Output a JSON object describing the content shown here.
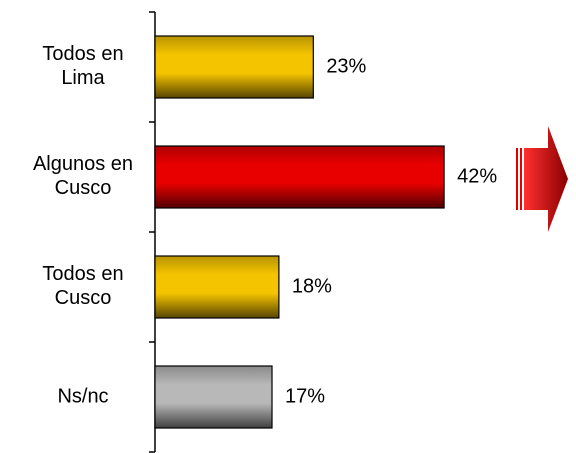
{
  "chart_data": {
    "type": "bar",
    "orientation": "horizontal",
    "categories": [
      "Todos en\nLima",
      "Algunos en\nCusco",
      "Todos en\nCusco",
      "Ns/nc"
    ],
    "values": [
      23,
      42,
      18,
      17
    ],
    "value_labels": [
      "23%",
      "42%",
      "18%",
      "17%"
    ],
    "colors": [
      "#f5c400",
      "#e80000",
      "#f5c400",
      "#b8b8b8"
    ],
    "xlim": [
      0,
      60
    ]
  }
}
